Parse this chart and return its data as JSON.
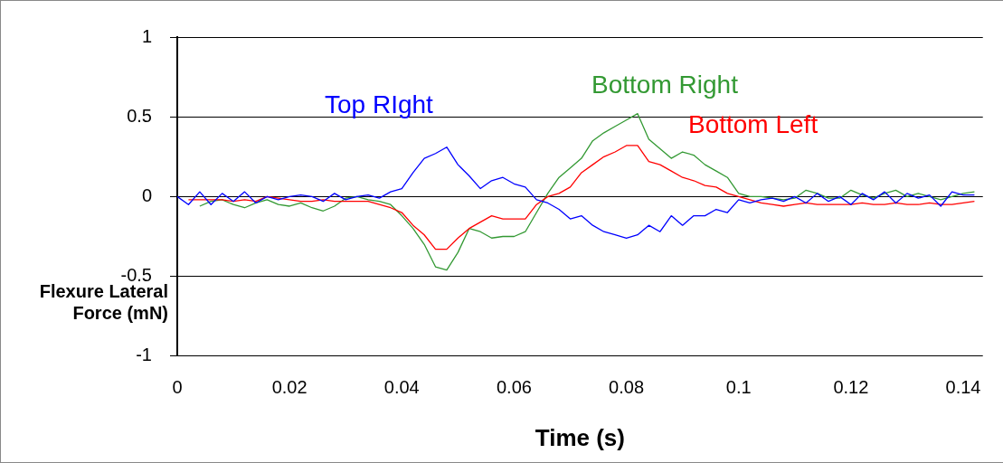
{
  "chart_data": {
    "type": "line",
    "xlabel": "Time (s)",
    "ylabel": "Flexure Lateral Force (mN)",
    "x": [
      0,
      0.002,
      0.004,
      0.006,
      0.008,
      0.01,
      0.012,
      0.014,
      0.016,
      0.018,
      0.02,
      0.022,
      0.024,
      0.026,
      0.028,
      0.03,
      0.032,
      0.034,
      0.036,
      0.038,
      0.04,
      0.042,
      0.044,
      0.046,
      0.048,
      0.05,
      0.052,
      0.054,
      0.056,
      0.058,
      0.06,
      0.062,
      0.064,
      0.066,
      0.068,
      0.07,
      0.072,
      0.074,
      0.076,
      0.078,
      0.08,
      0.082,
      0.084,
      0.086,
      0.088,
      0.09,
      0.092,
      0.094,
      0.096,
      0.098,
      0.1,
      0.102,
      0.104,
      0.106,
      0.108,
      0.11,
      0.112,
      0.114,
      0.116,
      0.118,
      0.12,
      0.122,
      0.124,
      0.126,
      0.128,
      0.13,
      0.132,
      0.134,
      0.136,
      0.138,
      0.14,
      0.142
    ],
    "series": [
      {
        "name": "Top RIght",
        "color": "#0000ff",
        "values": [
          0.0,
          -0.05,
          0.03,
          -0.05,
          0.02,
          -0.03,
          0.03,
          -0.04,
          0.0,
          -0.02,
          0.0,
          0.01,
          0.0,
          -0.03,
          0.02,
          -0.02,
          0.0,
          0.01,
          -0.01,
          0.03,
          0.05,
          0.15,
          0.24,
          0.27,
          0.31,
          0.2,
          0.13,
          0.05,
          0.1,
          0.12,
          0.08,
          0.06,
          -0.02,
          -0.04,
          -0.08,
          -0.14,
          -0.12,
          -0.18,
          -0.22,
          -0.24,
          -0.26,
          -0.24,
          -0.18,
          -0.22,
          -0.12,
          -0.18,
          -0.12,
          -0.12,
          -0.08,
          -0.1,
          -0.02,
          -0.04,
          -0.02,
          -0.01,
          -0.03,
          0.0,
          -0.04,
          0.02,
          -0.03,
          0.0,
          -0.05,
          0.02,
          -0.02,
          0.03,
          -0.04,
          0.02,
          -0.01,
          0.01,
          -0.06,
          0.03,
          0.01,
          0.01
        ]
      },
      {
        "name": "Bottom Left",
        "color": "#ff0000",
        "values": [
          null,
          -0.02,
          -0.02,
          -0.02,
          -0.02,
          -0.03,
          -0.02,
          -0.03,
          0.0,
          -0.01,
          -0.02,
          -0.03,
          -0.03,
          -0.02,
          -0.03,
          -0.03,
          -0.03,
          -0.03,
          -0.05,
          -0.07,
          -0.1,
          -0.18,
          -0.24,
          -0.33,
          -0.33,
          -0.26,
          -0.2,
          -0.16,
          -0.12,
          -0.14,
          -0.14,
          -0.14,
          -0.05,
          0.0,
          0.02,
          0.06,
          0.15,
          0.2,
          0.25,
          0.28,
          0.32,
          0.32,
          0.22,
          0.2,
          0.16,
          0.12,
          0.1,
          0.07,
          0.06,
          0.02,
          0.0,
          -0.02,
          -0.04,
          -0.05,
          -0.06,
          -0.05,
          -0.04,
          -0.05,
          -0.05,
          -0.05,
          -0.05,
          -0.04,
          -0.05,
          -0.05,
          -0.04,
          -0.05,
          -0.05,
          -0.04,
          -0.05,
          -0.05,
          -0.04,
          -0.03
        ]
      },
      {
        "name": "Bottom Right",
        "color": "#339933",
        "values": [
          null,
          null,
          -0.06,
          -0.03,
          -0.02,
          -0.05,
          -0.07,
          -0.04,
          -0.02,
          -0.05,
          -0.06,
          -0.04,
          -0.07,
          -0.09,
          -0.06,
          -0.01,
          0.0,
          -0.02,
          -0.03,
          -0.05,
          -0.12,
          -0.2,
          -0.3,
          -0.44,
          -0.46,
          -0.35,
          -0.2,
          -0.22,
          -0.26,
          -0.25,
          -0.25,
          -0.22,
          -0.1,
          0.02,
          0.12,
          0.18,
          0.24,
          0.35,
          0.4,
          0.44,
          0.48,
          0.52,
          0.36,
          0.3,
          0.24,
          0.28,
          0.26,
          0.2,
          0.16,
          0.12,
          0.02,
          0.0,
          0.0,
          -0.01,
          -0.02,
          -0.01,
          0.04,
          0.02,
          -0.01,
          -0.01,
          0.04,
          0.01,
          -0.01,
          0.02,
          0.04,
          0.0,
          0.02,
          0.0,
          -0.02,
          0.0,
          0.02,
          0.03
        ]
      }
    ],
    "xlim": [
      0,
      0.1435
    ],
    "ylim": [
      -1,
      1
    ],
    "xticks": [
      0,
      0.02,
      0.04,
      0.06,
      0.08,
      0.1,
      0.12,
      0.14
    ],
    "yticks": [
      -1,
      {
        "value": -0.5,
        "label": "-0.5"
      },
      0,
      {
        "value": 0.5,
        "label": "0.5"
      },
      1
    ],
    "grid": "y",
    "legend": false,
    "marker": "none",
    "line_style": "solid"
  }
}
